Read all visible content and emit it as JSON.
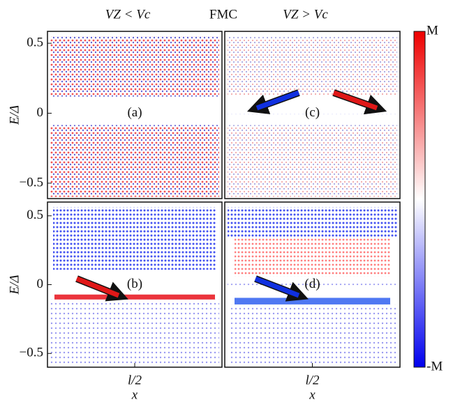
{
  "figure": {
    "title": "FMC",
    "colorbar_ticks": [
      {
        "value": 1,
        "label": "M"
      },
      {
        "value": -1,
        "label": "-M"
      }
    ],
    "colorbar_lim": [
      -1,
      1
    ]
  },
  "chart_data": [
    {
      "type": "heatmap",
      "title": "VZ < Vc",
      "panel_label": "(a)",
      "ylabel": "E/Δ",
      "xlim": [
        0,
        1
      ],
      "ylim": [
        -0.61,
        0.585
      ],
      "yticks": [
        {
          "value": 0.5,
          "label": "0.5"
        },
        0,
        {
          "value": -0.5,
          "label": "−0.5"
        }
      ],
      "xticks": []
    },
    {
      "type": "heatmap",
      "title": "VZ > Vc",
      "panel_label": "(c)",
      "xlim": [
        0,
        1
      ],
      "ylim": [
        -0.61,
        0.585
      ],
      "yticks": [],
      "xticks": []
    },
    {
      "type": "heatmap",
      "panel_label": "(b)",
      "ylabel": "E/Δ",
      "xlabel": "x",
      "xlim": [
        0,
        1
      ],
      "ylim": [
        -0.6,
        0.6
      ],
      "yticks": [
        {
          "value": 0.5,
          "label": "0.5"
        },
        0,
        {
          "value": -0.5,
          "label": "−0.5"
        }
      ],
      "xticks": [
        {
          "value": 0.5,
          "label": "l/2"
        }
      ]
    },
    {
      "type": "heatmap",
      "panel_label": "(d)",
      "xlabel": "x",
      "xlim": [
        0,
        1
      ],
      "ylim": [
        -0.6,
        0.6
      ],
      "yticks": [],
      "xticks": [
        {
          "value": 0.5,
          "label": "l/2"
        }
      ]
    }
  ]
}
